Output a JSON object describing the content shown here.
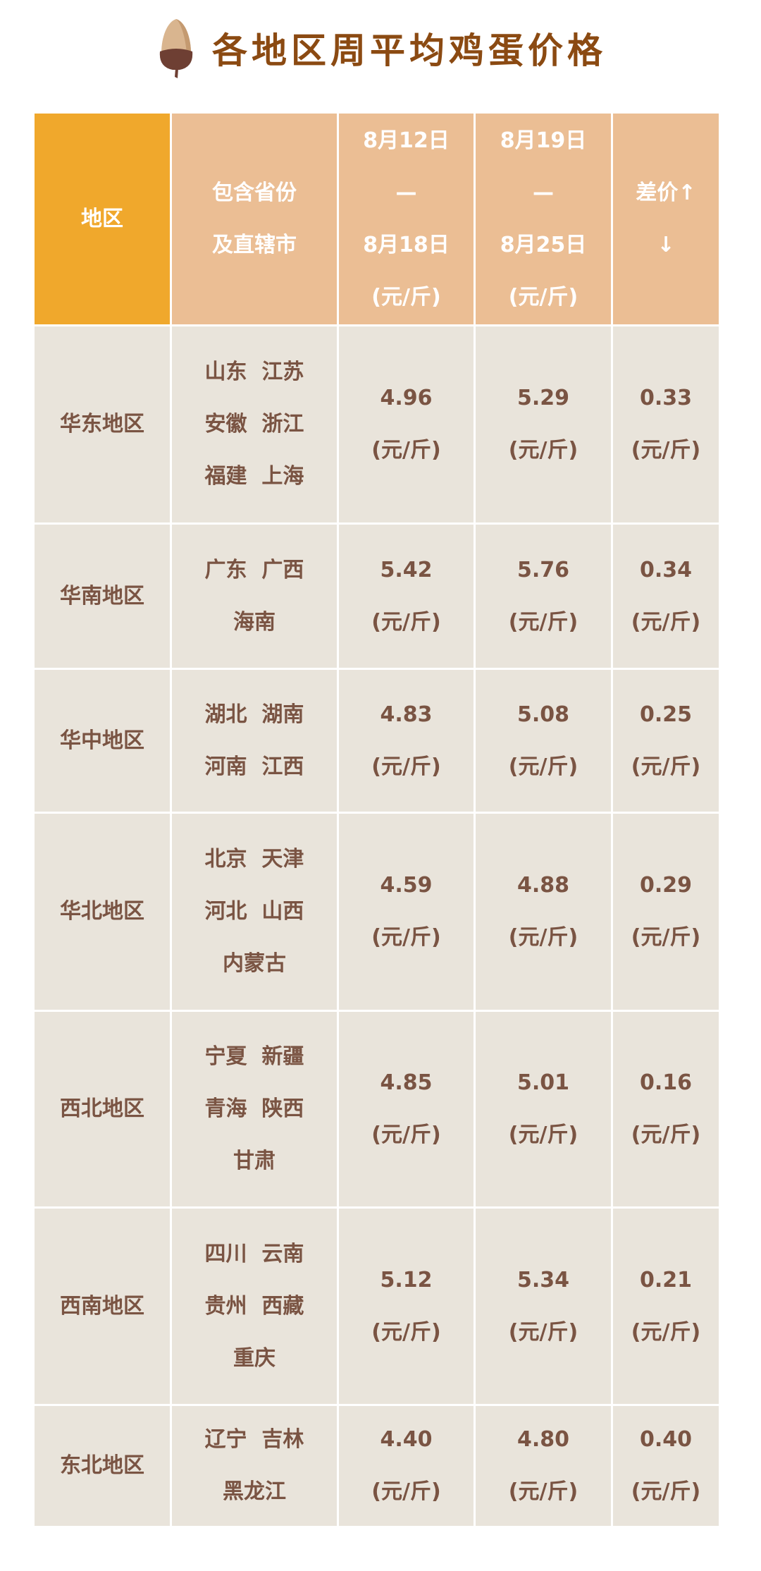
{
  "title": "各地区周平均鸡蛋价格",
  "colors": {
    "title": "#8B4A12",
    "header_region": "#F0A82C",
    "header": "#EBBE94",
    "cell": "#E9E4DB",
    "text": "#7A5443"
  },
  "icon": "acorn-icon",
  "headers": {
    "region": "地区",
    "provinces": [
      "包含省份",
      "及直辖市"
    ],
    "week1": [
      "8月12日",
      "—",
      "8月18日",
      "(元/斤)"
    ],
    "week2": [
      "8月19日",
      "—",
      "8月25日",
      "(元/斤)"
    ],
    "diff": [
      "差价↑",
      "↓"
    ]
  },
  "unit": "(元/斤)",
  "rows": [
    {
      "region": "华东地区",
      "provinces": [
        "山东  江苏",
        "安徽  浙江",
        "福建  上海"
      ],
      "week1": "4.96",
      "week2": "5.29",
      "diff": "0.33"
    },
    {
      "region": "华南地区",
      "provinces": [
        "广东  广西",
        "海南"
      ],
      "week1": "5.42",
      "week2": "5.76",
      "diff": "0.34"
    },
    {
      "region": "华中地区",
      "provinces": [
        "湖北  湖南",
        "河南  江西"
      ],
      "week1": "4.83",
      "week2": "5.08",
      "diff": "0.25"
    },
    {
      "region": "华北地区",
      "provinces": [
        "北京  天津",
        "河北  山西",
        "内蒙古"
      ],
      "week1": "4.59",
      "week2": "4.88",
      "diff": "0.29"
    },
    {
      "region": "西北地区",
      "provinces": [
        "宁夏  新疆",
        "青海  陕西",
        "甘肃"
      ],
      "week1": "4.85",
      "week2": "5.01",
      "diff": "0.16"
    },
    {
      "region": "西南地区",
      "provinces": [
        "四川  云南",
        "贵州  西藏",
        "重庆"
      ],
      "week1": "5.12",
      "week2": "5.34",
      "diff": "0.21"
    },
    {
      "region": "东北地区",
      "provinces": [
        "辽宁  吉林",
        "黑龙江"
      ],
      "week1": "4.40",
      "week2": "4.80",
      "diff": "0.40"
    }
  ]
}
